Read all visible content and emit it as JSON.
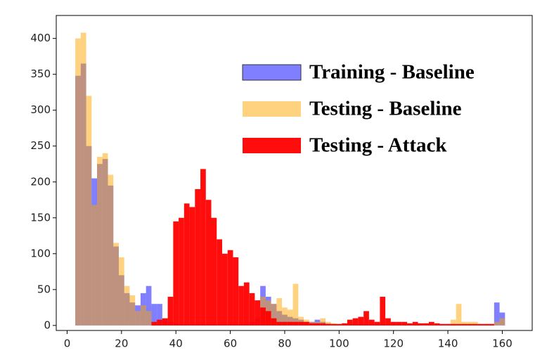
{
  "chart_data": {
    "type": "histogram",
    "bins": [
      3,
      5,
      7,
      9,
      11,
      13,
      15,
      17,
      19,
      21,
      23,
      25,
      27,
      29,
      31,
      33,
      35,
      37,
      39,
      41,
      43,
      45,
      47,
      49,
      51,
      53,
      55,
      57,
      59,
      61,
      63,
      65,
      67,
      69,
      71,
      73,
      75,
      77,
      79,
      81,
      83,
      85,
      87,
      89,
      91,
      93,
      95,
      97,
      99,
      101,
      103,
      105,
      107,
      109,
      111,
      113,
      115,
      117,
      119,
      121,
      123,
      125,
      127,
      129,
      131,
      133,
      135,
      137,
      139,
      141,
      143,
      145,
      147,
      149,
      151,
      153,
      155,
      157,
      159,
      161,
      163
    ],
    "series": [
      {
        "name": "Training - Baseline",
        "color": "#0000ff",
        "values": [
          348,
          365,
          250,
          205,
          225,
          232,
          195,
          110,
          70,
          45,
          32,
          28,
          45,
          55,
          30,
          30,
          8,
          5,
          3,
          2,
          2,
          2,
          2,
          2,
          2,
          2,
          2,
          2,
          2,
          2,
          2,
          2,
          5,
          10,
          55,
          40,
          30,
          20,
          15,
          12,
          10,
          8,
          5,
          5,
          8,
          5,
          3,
          2,
          2,
          2,
          2,
          2,
          2,
          2,
          2,
          2,
          2,
          2,
          2,
          2,
          2,
          2,
          2,
          2,
          2,
          2,
          2,
          2,
          2,
          2,
          2,
          2,
          2,
          2,
          2,
          2,
          2,
          32,
          18,
          0
        ]
      },
      {
        "name": "Testing - Baseline",
        "color": "#ffa500",
        "values": [
          400,
          408,
          320,
          168,
          235,
          240,
          210,
          115,
          95,
          55,
          42,
          20,
          28,
          20,
          5,
          5,
          3,
          3,
          2,
          2,
          2,
          2,
          2,
          2,
          2,
          2,
          2,
          2,
          2,
          2,
          2,
          2,
          2,
          5,
          40,
          35,
          30,
          38,
          25,
          22,
          58,
          12,
          8,
          5,
          5,
          10,
          5,
          3,
          2,
          2,
          2,
          2,
          2,
          2,
          2,
          2,
          2,
          2,
          2,
          2,
          2,
          2,
          2,
          2,
          2,
          2,
          2,
          2,
          2,
          8,
          30,
          5,
          5,
          5,
          2,
          2,
          2,
          5,
          10,
          0
        ]
      },
      {
        "name": "Testing - Attack",
        "color": "#ff0000",
        "values": [
          0,
          0,
          0,
          0,
          0,
          0,
          0,
          0,
          0,
          0,
          0,
          0,
          0,
          0,
          5,
          8,
          10,
          40,
          145,
          150,
          170,
          165,
          190,
          218,
          175,
          150,
          120,
          100,
          105,
          95,
          55,
          60,
          45,
          35,
          25,
          20,
          10,
          5,
          5,
          5,
          5,
          5,
          5,
          3,
          3,
          3,
          2,
          2,
          2,
          3,
          8,
          10,
          12,
          20,
          8,
          5,
          40,
          10,
          5,
          5,
          5,
          3,
          5,
          3,
          3,
          5,
          3,
          2,
          2,
          2,
          2,
          2,
          2,
          2,
          2,
          2,
          2,
          0,
          0,
          0
        ]
      }
    ],
    "xlim": [
      -4,
      171
    ],
    "ylim": [
      -7,
      432
    ],
    "xticks": [
      0,
      20,
      40,
      60,
      80,
      100,
      120,
      140,
      160
    ],
    "yticks": [
      0,
      50,
      100,
      150,
      200,
      250,
      300,
      350,
      400
    ],
    "legend": "upper right"
  }
}
